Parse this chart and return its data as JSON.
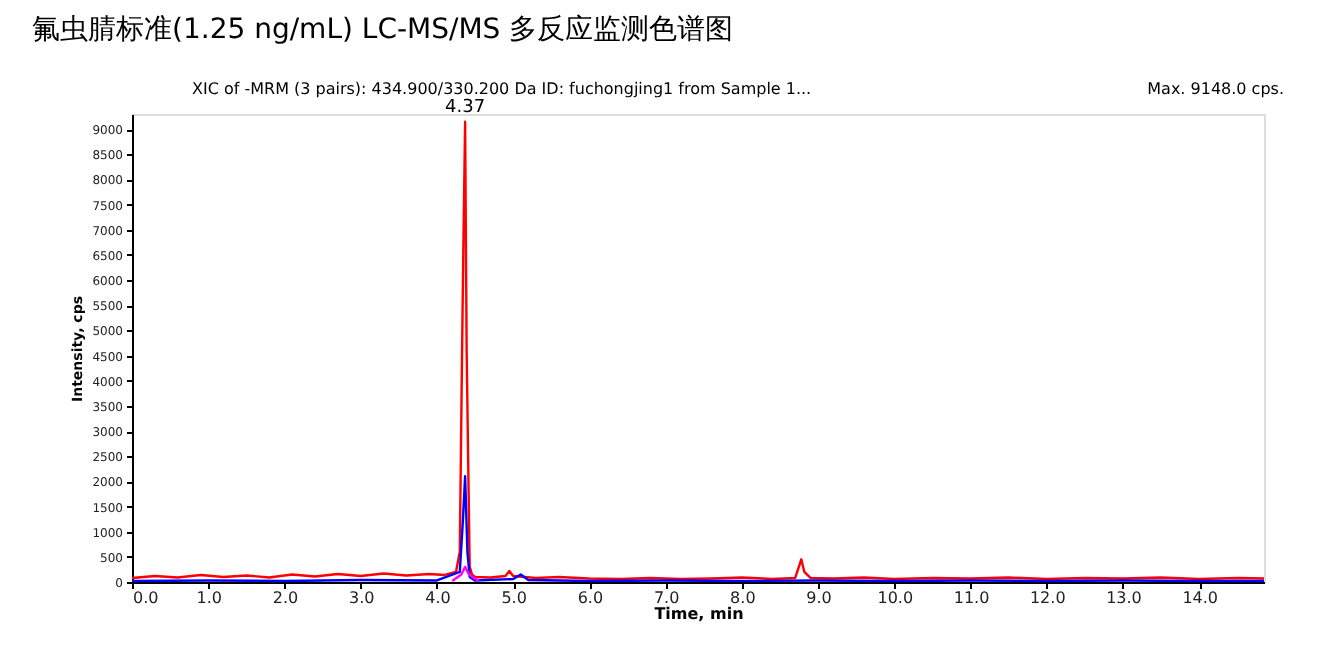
{
  "chart_data": {
    "type": "line",
    "title": "氟虫腈标准(1.25 ng/mL) LC-MS/MS 多反应监测色谱图",
    "xlabel": "Time, min",
    "ylabel": "Intensity, cps",
    "annotations": [
      "XIC of -MRM (3 pairs): 434.900/330.200 Da ID: fuchongjing1 from Sample 1...",
      "Max. 9148.0 cps.",
      {
        "text": "4.37",
        "x": 4.37,
        "y": 9148
      }
    ],
    "series": [
      {
        "color": "#ff0000",
        "x": [
          0,
          0.3,
          0.6,
          0.9,
          1.2,
          1.5,
          1.8,
          2.1,
          2.4,
          2.7,
          3.0,
          3.3,
          3.6,
          3.9,
          4.1,
          4.25,
          4.3,
          4.33,
          4.35,
          4.37,
          4.39,
          4.41,
          4.43,
          4.46,
          4.5,
          4.7,
          4.9,
          4.95,
          5.0,
          5.3,
          5.6,
          6.0,
          6.4,
          6.8,
          7.2,
          7.6,
          8.0,
          8.4,
          8.7,
          8.78,
          8.82,
          8.9,
          9.2,
          9.6,
          10.0,
          10.5,
          11.0,
          11.5,
          12.0,
          12.5,
          13.0,
          13.5,
          14.0,
          14.5,
          14.85
        ],
        "values": [
          80,
          120,
          90,
          140,
          100,
          130,
          90,
          150,
          110,
          160,
          120,
          170,
          130,
          160,
          140,
          200,
          600,
          4600,
          7000,
          9148,
          4600,
          2400,
          300,
          150,
          100,
          90,
          120,
          220,
          120,
          80,
          100,
          70,
          60,
          80,
          60,
          70,
          90,
          60,
          80,
          450,
          200,
          80,
          70,
          90,
          60,
          80,
          70,
          90,
          60,
          80,
          70,
          90,
          60,
          80,
          70
        ]
      },
      {
        "color": "#0000ff",
        "x": [
          0,
          1.0,
          2.0,
          3.0,
          4.0,
          4.3,
          4.34,
          4.37,
          4.4,
          4.43,
          4.5,
          5.0,
          5.1,
          5.2,
          6.0,
          7.0,
          8.0,
          9.0,
          10.0,
          11.0,
          12.0,
          13.0,
          14.0,
          14.85
        ],
        "values": [
          20,
          30,
          20,
          40,
          30,
          200,
          1200,
          2100,
          600,
          100,
          30,
          60,
          150,
          40,
          20,
          30,
          20,
          30,
          20,
          30,
          20,
          30,
          20,
          20
        ]
      },
      {
        "color": "#ff00ff",
        "x": [
          4.2,
          4.32,
          4.37,
          4.42,
          4.55
        ],
        "values": [
          20,
          150,
          300,
          150,
          20
        ]
      }
    ],
    "xlim": [
      0,
      14.85
    ],
    "ylim": [
      0,
      9300
    ],
    "xticks": [
      {
        "value": 0,
        "label": "0.0"
      },
      {
        "value": 1,
        "label": "1.0"
      },
      {
        "value": 2,
        "label": "2.0"
      },
      {
        "value": 3,
        "label": "3.0"
      },
      {
        "value": 4,
        "label": "4.0"
      },
      {
        "value": 5,
        "label": "5.0"
      },
      {
        "value": 6,
        "label": "6.0"
      },
      {
        "value": 7,
        "label": "7.0"
      },
      {
        "value": 8,
        "label": "8.0"
      },
      {
        "value": 9,
        "label": "9.0"
      },
      {
        "value": 10,
        "label": "10.0"
      },
      {
        "value": 11,
        "label": "11.0"
      },
      {
        "value": 12,
        "label": "12.0"
      },
      {
        "value": 13,
        "label": "13.0"
      },
      {
        "value": 14,
        "label": "14.0"
      }
    ],
    "yticks": [
      0,
      500,
      1000,
      1500,
      2000,
      2500,
      3000,
      3500,
      4000,
      4500,
      5000,
      5500,
      6000,
      6500,
      7000,
      7500,
      8000,
      8500,
      9000
    ],
    "grid": false,
    "legend": false,
    "marker": "none",
    "line_style": "solid"
  }
}
